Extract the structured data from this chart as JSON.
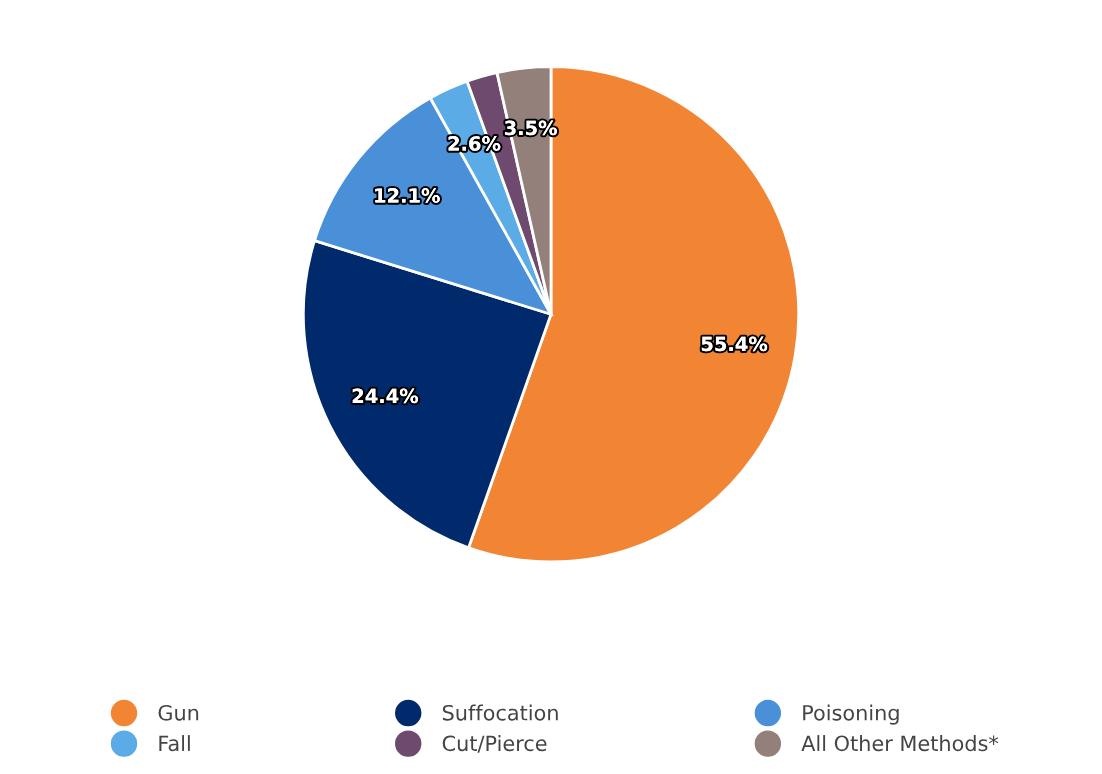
{
  "chart_data": {
    "type": "pie",
    "categories": [
      "Gun",
      "Suffocation",
      "Poisoning",
      "Fall",
      "Cut/Pierce",
      "All Other Methods*"
    ],
    "values": [
      55.4,
      24.4,
      12.1,
      2.6,
      2.0,
      3.5
    ],
    "value_labels": [
      "55.4%",
      "24.4%",
      "12.1%",
      "2.6%",
      null,
      "3.5%"
    ],
    "colors": [
      "#f28533",
      "#002a6b",
      "#4a90d9",
      "#5aabe6",
      "#6e4a6e",
      "#94807a"
    ],
    "legend": "bottom"
  }
}
